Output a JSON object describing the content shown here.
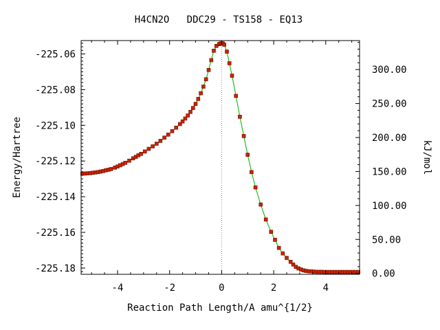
{
  "chart_data": {
    "type": "line",
    "title": "H4CN2O   DDC29 - TS158 - EQ13",
    "xlabel": "Reaction Path Length/A amu^{1/2}",
    "ylabel": "Energy/Hartree",
    "y2label": "kJ/mol",
    "xlim": [
      -5.4,
      5.3
    ],
    "ylim": [
      -225.1835,
      -225.0525
    ],
    "y2_reference_hartree": -225.183,
    "y2_factor": 2625.5,
    "xticks": [
      -4,
      -2,
      0,
      2,
      4
    ],
    "xtick_labels": [
      "-4",
      "-2",
      "0",
      "2",
      "4"
    ],
    "yticks": [
      -225.06,
      -225.08,
      -225.1,
      -225.12,
      -225.14,
      -225.16,
      -225.18
    ],
    "ytick_labels": [
      "-225.06",
      "-225.08",
      "-225.10",
      "-225.12",
      "-225.14",
      "-225.16",
      "-225.18"
    ],
    "y2ticks": [
      0,
      50,
      100,
      150,
      200,
      250,
      300
    ],
    "y2tick_labels": [
      "0.00",
      "50.00",
      "100.00",
      "150.00",
      "200.00",
      "250.00",
      "300.00"
    ],
    "ts_marker_x": 0,
    "grid": false,
    "colors": {
      "line": "#00aa00",
      "marker": "#cc2200",
      "marker_edge": "#661100",
      "ts_line": "#888888"
    },
    "series": [
      {
        "x": [
          -5.35,
          -5.25,
          -5.15,
          -5.05,
          -4.95,
          -4.85,
          -4.75,
          -4.65,
          -4.55,
          -4.45,
          -4.35,
          -4.25,
          -4.1,
          -4.0,
          -3.9,
          -3.8,
          -3.7,
          -3.55,
          -3.4,
          -3.3,
          -3.2,
          -3.1,
          -2.95,
          -2.8,
          -2.65,
          -2.5,
          -2.35,
          -2.2,
          -2.05,
          -1.9,
          -1.75,
          -1.6,
          -1.5,
          -1.4,
          -1.3,
          -1.2,
          -1.1,
          -1.0,
          -0.9,
          -0.8,
          -0.7,
          -0.6,
          -0.5,
          -0.4,
          -0.3,
          -0.2,
          -0.1,
          -0.05,
          0.0,
          0.05,
          0.1,
          0.2,
          0.3,
          0.4,
          0.55,
          0.7,
          0.85,
          1.0,
          1.15,
          1.3,
          1.5,
          1.7,
          1.9,
          2.05,
          2.2,
          2.35,
          2.5,
          2.65,
          2.75,
          2.85,
          2.95,
          3.05,
          3.15,
          3.25,
          3.35,
          3.45,
          3.55,
          3.65,
          3.75,
          3.85,
          3.95,
          4.05,
          4.15,
          4.25,
          4.35,
          4.45,
          4.55,
          4.65,
          4.75,
          4.85,
          4.95,
          5.05,
          5.15,
          5.25
        ],
        "y": [
          -225.1271,
          -225.127,
          -225.1269,
          -225.1268,
          -225.1266,
          -225.1264,
          -225.1262,
          -225.1259,
          -225.1256,
          -225.1252,
          -225.1249,
          -225.1245,
          -225.1237,
          -225.1231,
          -225.1224,
          -225.1217,
          -225.121,
          -225.1198,
          -225.1185,
          -225.1177,
          -225.1168,
          -225.116,
          -225.1147,
          -225.1132,
          -225.1118,
          -225.1103,
          -225.1087,
          -225.1069,
          -225.1052,
          -225.1033,
          -225.1013,
          -225.0993,
          -225.0978,
          -225.0962,
          -225.0945,
          -225.0925,
          -225.0903,
          -225.088,
          -225.0852,
          -225.082,
          -225.0783,
          -225.0742,
          -225.069,
          -225.0635,
          -225.0582,
          -225.0555,
          -225.0545,
          -225.0542,
          -225.054,
          -225.0542,
          -225.0548,
          -225.0587,
          -225.0652,
          -225.0722,
          -225.0835,
          -225.0952,
          -225.106,
          -225.1165,
          -225.1262,
          -225.1348,
          -225.1444,
          -225.1528,
          -225.1597,
          -225.1642,
          -225.1687,
          -225.1718,
          -225.1743,
          -225.1765,
          -225.178,
          -225.1793,
          -225.1802,
          -225.1808,
          -225.1813,
          -225.1816,
          -225.1818,
          -225.1819,
          -225.182,
          -225.1821,
          -225.1821,
          -225.1821,
          -225.1822,
          -225.1822,
          -225.1822,
          -225.1822,
          -225.1822,
          -225.1822,
          -225.1822,
          -225.1822,
          -225.1822,
          -225.1822,
          -225.1822,
          -225.1822,
          -225.1822,
          -225.1822
        ]
      }
    ]
  }
}
